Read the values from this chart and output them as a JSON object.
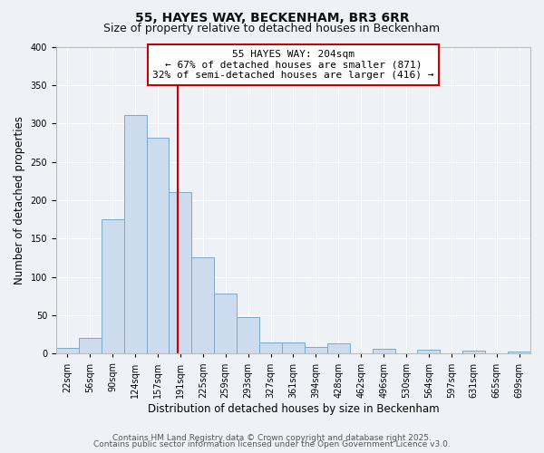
{
  "title": "55, HAYES WAY, BECKENHAM, BR3 6RR",
  "subtitle": "Size of property relative to detached houses in Beckenham",
  "bar_labels": [
    "22sqm",
    "56sqm",
    "90sqm",
    "124sqm",
    "157sqm",
    "191sqm",
    "225sqm",
    "259sqm",
    "293sqm",
    "327sqm",
    "361sqm",
    "394sqm",
    "428sqm",
    "462sqm",
    "496sqm",
    "530sqm",
    "564sqm",
    "597sqm",
    "631sqm",
    "665sqm",
    "699sqm"
  ],
  "bar_values": [
    7,
    21,
    175,
    311,
    281,
    211,
    126,
    78,
    48,
    15,
    15,
    9,
    13,
    0,
    6,
    0,
    5,
    0,
    4,
    0,
    3
  ],
  "bar_color": "#ccdcee",
  "bar_edge_color": "#7aaac8",
  "vline_x_index": 5,
  "vline_color": "#cc0000",
  "bin_width": 1,
  "ylim": [
    0,
    400
  ],
  "yticks": [
    0,
    50,
    100,
    150,
    200,
    250,
    300,
    350,
    400
  ],
  "ylabel": "Number of detached properties",
  "xlabel": "Distribution of detached houses by size in Beckenham",
  "annotation_line1": "55 HAYES WAY: 204sqm",
  "annotation_line2": "← 67% of detached houses are smaller (871)",
  "annotation_line3": "32% of semi-detached houses are larger (416) →",
  "annotation_box_color": "#ffffff",
  "annotation_box_edge": "#cc0000",
  "footer1": "Contains HM Land Registry data © Crown copyright and database right 2025.",
  "footer2": "Contains public sector information licensed under the Open Government Licence v3.0.",
  "background_color": "#eef2f7",
  "grid_color": "#ffffff",
  "title_fontsize": 10,
  "subtitle_fontsize": 9,
  "axis_label_fontsize": 8.5,
  "tick_fontsize": 7,
  "annotation_fontsize": 8,
  "footer_fontsize": 6.5
}
